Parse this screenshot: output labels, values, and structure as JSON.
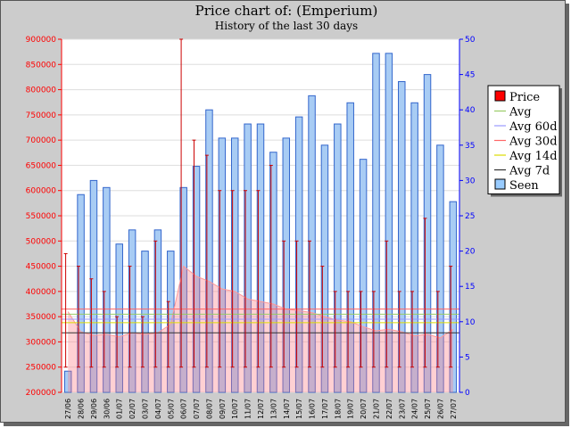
{
  "chart_data": {
    "type": "bar",
    "title": "Price chart of: (Emperium)",
    "subtitle": "History of the last 30 days",
    "categories": [
      "27/06",
      "28/06",
      "29/06",
      "30/06",
      "01/07",
      "02/07",
      "03/07",
      "04/07",
      "05/07",
      "06/07",
      "07/07",
      "08/07",
      "09/07",
      "10/07",
      "11/07",
      "12/07",
      "13/07",
      "14/07",
      "15/07",
      "16/07",
      "17/07",
      "18/07",
      "19/07",
      "20/07",
      "21/07",
      "22/07",
      "23/07",
      "24/07",
      "25/07",
      "26/07",
      "27/07"
    ],
    "y_left": {
      "label": "",
      "range": [
        200000,
        900000
      ],
      "ticks": [
        200000,
        250000,
        300000,
        350000,
        400000,
        450000,
        500000,
        550000,
        600000,
        650000,
        700000,
        750000,
        800000,
        850000,
        900000
      ],
      "color": "#ff0000"
    },
    "y_right": {
      "label": "",
      "range": [
        0,
        50
      ],
      "ticks": [
        0,
        5,
        10,
        15,
        20,
        25,
        30,
        35,
        40,
        45,
        50
      ],
      "color": "#0000ff"
    },
    "grid": true,
    "legend_position": "right",
    "legend": [
      {
        "label": "Price",
        "color": "#ff0000",
        "kind": "box"
      },
      {
        "label": "Avg",
        "color": "#99cc66",
        "kind": "line"
      },
      {
        "label": "Avg 60d",
        "color": "#9999ff",
        "kind": "line"
      },
      {
        "label": "Avg 30d",
        "color": "#ff6666",
        "kind": "line"
      },
      {
        "label": "Avg 14d",
        "color": "#dddd00",
        "kind": "line"
      },
      {
        "label": "Avg 7d",
        "color": "#333333",
        "kind": "line"
      },
      {
        "label": "Seen",
        "color": "#99ccff",
        "kind": "box"
      }
    ],
    "series": [
      {
        "name": "Seen",
        "axis": "right",
        "kind": "bar",
        "color": "#99ccff",
        "values": [
          3,
          28,
          30,
          29,
          21,
          23,
          20,
          23,
          20,
          29,
          32,
          40,
          36,
          36,
          38,
          38,
          34,
          36,
          39,
          42,
          35,
          38,
          41,
          33,
          48,
          48,
          44,
          41,
          45,
          35,
          27
        ]
      },
      {
        "name": "Price",
        "axis": "left",
        "kind": "price-bar",
        "color": "#cc0000",
        "low": [
          250000,
          250000,
          250000,
          250000,
          250000,
          250000,
          250000,
          250000,
          250000,
          250000,
          250000,
          250000,
          250000,
          250000,
          250000,
          250000,
          250000,
          250000,
          250000,
          250000,
          250000,
          250000,
          250000,
          250000,
          250000,
          250000,
          250000,
          250000,
          250000,
          250000,
          250000
        ],
        "high": [
          475000,
          450000,
          425000,
          400000,
          350000,
          450000,
          350000,
          500000,
          380000,
          900000,
          700000,
          670000,
          600000,
          600000,
          600000,
          600000,
          650000,
          500000,
          500000,
          500000,
          450000,
          400000,
          400000,
          400000,
          400000,
          500000,
          400000,
          400000,
          545000,
          400000,
          450000
        ]
      },
      {
        "name": "Avg 30d",
        "axis": "left",
        "kind": "area",
        "color": "#ff6666",
        "values": [
          360000,
          320000,
          313000,
          315000,
          310000,
          318000,
          315000,
          318000,
          335000,
          450000,
          430000,
          420000,
          405000,
          400000,
          385000,
          380000,
          375000,
          365000,
          362000,
          358000,
          350000,
          343000,
          340000,
          330000,
          322000,
          325000,
          320000,
          312000,
          315000,
          308000,
          325000
        ]
      },
      {
        "name": "Avg",
        "axis": "left",
        "kind": "hline",
        "color": "#99cc66",
        "value": 355000
      },
      {
        "name": "Avg 60d",
        "axis": "left",
        "kind": "hline",
        "color": "#9999ff",
        "value": 345000
      },
      {
        "name": "Avg 14d",
        "axis": "left",
        "kind": "hline",
        "color": "#dddd00",
        "value": 338000
      },
      {
        "name": "Avg 7d",
        "axis": "left",
        "kind": "hline",
        "color": "#333333",
        "value": 318000
      },
      {
        "name": "Avg 30d (ref)",
        "axis": "left",
        "kind": "hline",
        "color": "#ff6666",
        "value": 365000
      }
    ]
  }
}
